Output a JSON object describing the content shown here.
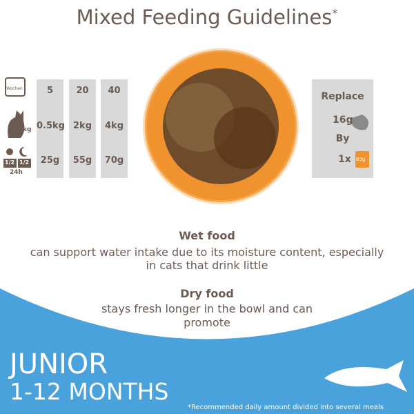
{
  "header": {
    "title": "Mixed Feeding Guidelines",
    "mark": "*"
  },
  "icons": {
    "weeks": "Wochen",
    "weight": "kg",
    "day_half": "1/2",
    "night_half": "1/2",
    "day": "24h"
  },
  "table": {
    "columns": [
      [
        "5",
        "0.5kg",
        "25g"
      ],
      [
        "20",
        "2kg",
        "55g"
      ],
      [
        "40",
        "4kg",
        "70g"
      ]
    ]
  },
  "replace": {
    "title": "Replace",
    "amount": "16g",
    "by": "By",
    "count": "1x",
    "pouch": "85g"
  },
  "wet": {
    "heading": "Wet food",
    "lines": [
      "can support water intake due to its moisture content, especially",
      "in cats that drink little"
    ]
  },
  "dry": {
    "heading": "Dry food",
    "lines": [
      "stays fresh longer in the bowl and can",
      "promote"
    ]
  },
  "footer": {
    "stage": "JUNIOR",
    "age": "1-12 MONTHS",
    "note": "*Recommended daily amount divided into several meals"
  }
}
